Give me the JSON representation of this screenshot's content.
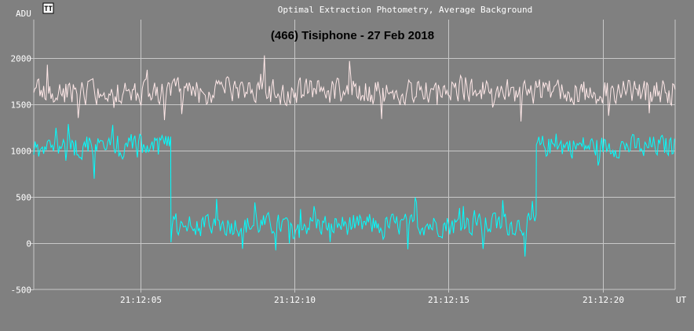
{
  "header": {
    "plot_title": "Optimal Extraction Photometry, Average Background",
    "yunit": "ADU",
    "xunit": "UT",
    "logo_text": "TT"
  },
  "chart_data": {
    "type": "line",
    "title": "(466) Tisiphone - 27 Feb 2018",
    "ylabel": "ADU",
    "xlabel": "UT",
    "ylim": [
      -500,
      2420
    ],
    "xlim_seconds": [
      1.55,
      22.35
    ],
    "yticks": [
      -500,
      0,
      500,
      1000,
      1500,
      2000
    ],
    "xticks": [
      "21:12:05",
      "21:12:10",
      "21:12:15",
      "21:12:20"
    ],
    "grid": true,
    "background_color": "#808080",
    "grid_color": "#c8c8c8",
    "series": [
      {
        "color": "#ffe8e8",
        "segments": [
          {
            "t_start": 1.55,
            "t_end": 22.35,
            "mean": 1640,
            "amplitude": 170,
            "spike_prob": 0.04,
            "spike": 380
          }
        ]
      },
      {
        "color": "#00ffff",
        "segments": [
          {
            "t_start": 1.55,
            "t_end": 6.0,
            "mean": 1050,
            "amplitude": 160,
            "spike_prob": 0.05,
            "spike": 320
          },
          {
            "t_start": 6.0,
            "t_end": 17.85,
            "mean": 200,
            "amplitude": 150,
            "spike_prob": 0.06,
            "spike": 330
          },
          {
            "t_start": 17.85,
            "t_end": 22.35,
            "mean": 1050,
            "amplitude": 150,
            "spike_prob": 0.05,
            "spike": 300
          }
        ]
      }
    ]
  }
}
